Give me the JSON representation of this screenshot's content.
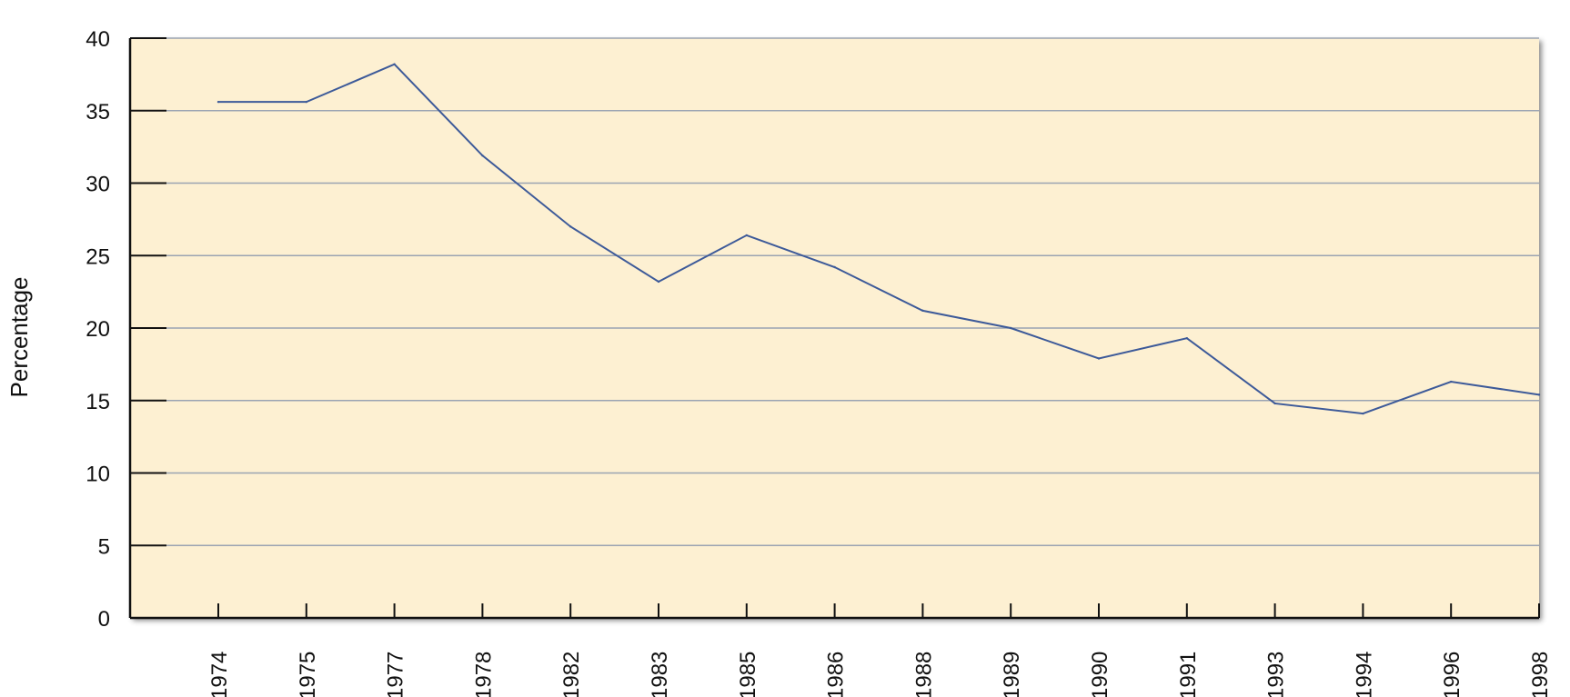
{
  "chart_data": {
    "type": "line",
    "title": "",
    "xlabel": "",
    "ylabel": "Percentage",
    "ylim": [
      0,
      40
    ],
    "y_ticks": [
      "0",
      "5",
      "10",
      "15",
      "20",
      "25",
      "30",
      "35",
      "40"
    ],
    "grid": true,
    "categories": [
      "1974",
      "1975",
      "1977",
      "1978",
      "1982",
      "1983",
      "1985",
      "1986",
      "1988",
      "1989",
      "1990",
      "1991",
      "1993",
      "1994",
      "1996",
      "1998"
    ],
    "series": [
      {
        "values": [
          35.6,
          35.6,
          38.2,
          31.9,
          27.0,
          23.2,
          26.4,
          24.2,
          21.2,
          20.0,
          17.9,
          19.3,
          14.8,
          14.1,
          16.3,
          15.4
        ]
      }
    ],
    "colors": {
      "plot_background": "#fdf0d2",
      "line": "#3d5a99",
      "grid": "#9aa3b2",
      "axis": "#111111"
    }
  }
}
